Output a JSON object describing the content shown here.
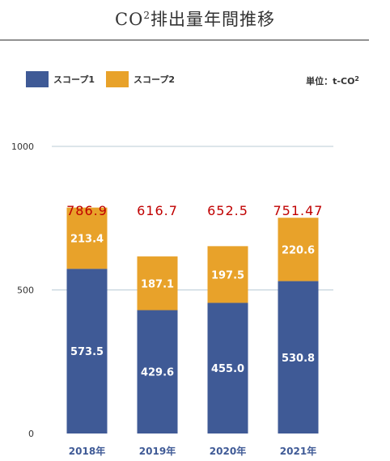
{
  "header": {
    "title_main": "CO",
    "title_sup": "2",
    "title_rest": "排出量年間推移"
  },
  "legend": [
    {
      "label": "スコープ1",
      "color": "#3f5a96"
    },
    {
      "label": "スコープ2",
      "color": "#e8a22a"
    }
  ],
  "unit": {
    "label": "単位：t-CO",
    "sup": "2"
  },
  "chart_data": {
    "type": "bar",
    "stacked": true,
    "categories": [
      "2018年",
      "2019年",
      "2020年",
      "2021年"
    ],
    "series": [
      {
        "name": "スコープ1",
        "values": [
          573.5,
          429.6,
          455.0,
          530.8
        ],
        "labels": [
          "573.5",
          "429.6",
          "455.0",
          "530.8"
        ]
      },
      {
        "name": "スコープ2",
        "values": [
          213.4,
          187.1,
          197.5,
          220.6
        ],
        "labels": [
          "213.4",
          "187.1",
          "197.5",
          "220.6"
        ]
      }
    ],
    "totals": [
      "786.9",
      "616.7",
      "652.5",
      "751.47"
    ],
    "yticks": [
      0,
      500,
      1000
    ],
    "ylim": [
      0,
      1000
    ],
    "grid": true,
    "legend_position": "top-left"
  },
  "colors": {
    "scope1": "#3f5a96",
    "scope2": "#e8a22a",
    "total": "#c00000",
    "grid": "#b9cbd6",
    "axis_text": "#333333",
    "xlabel": "#3f5a96"
  }
}
